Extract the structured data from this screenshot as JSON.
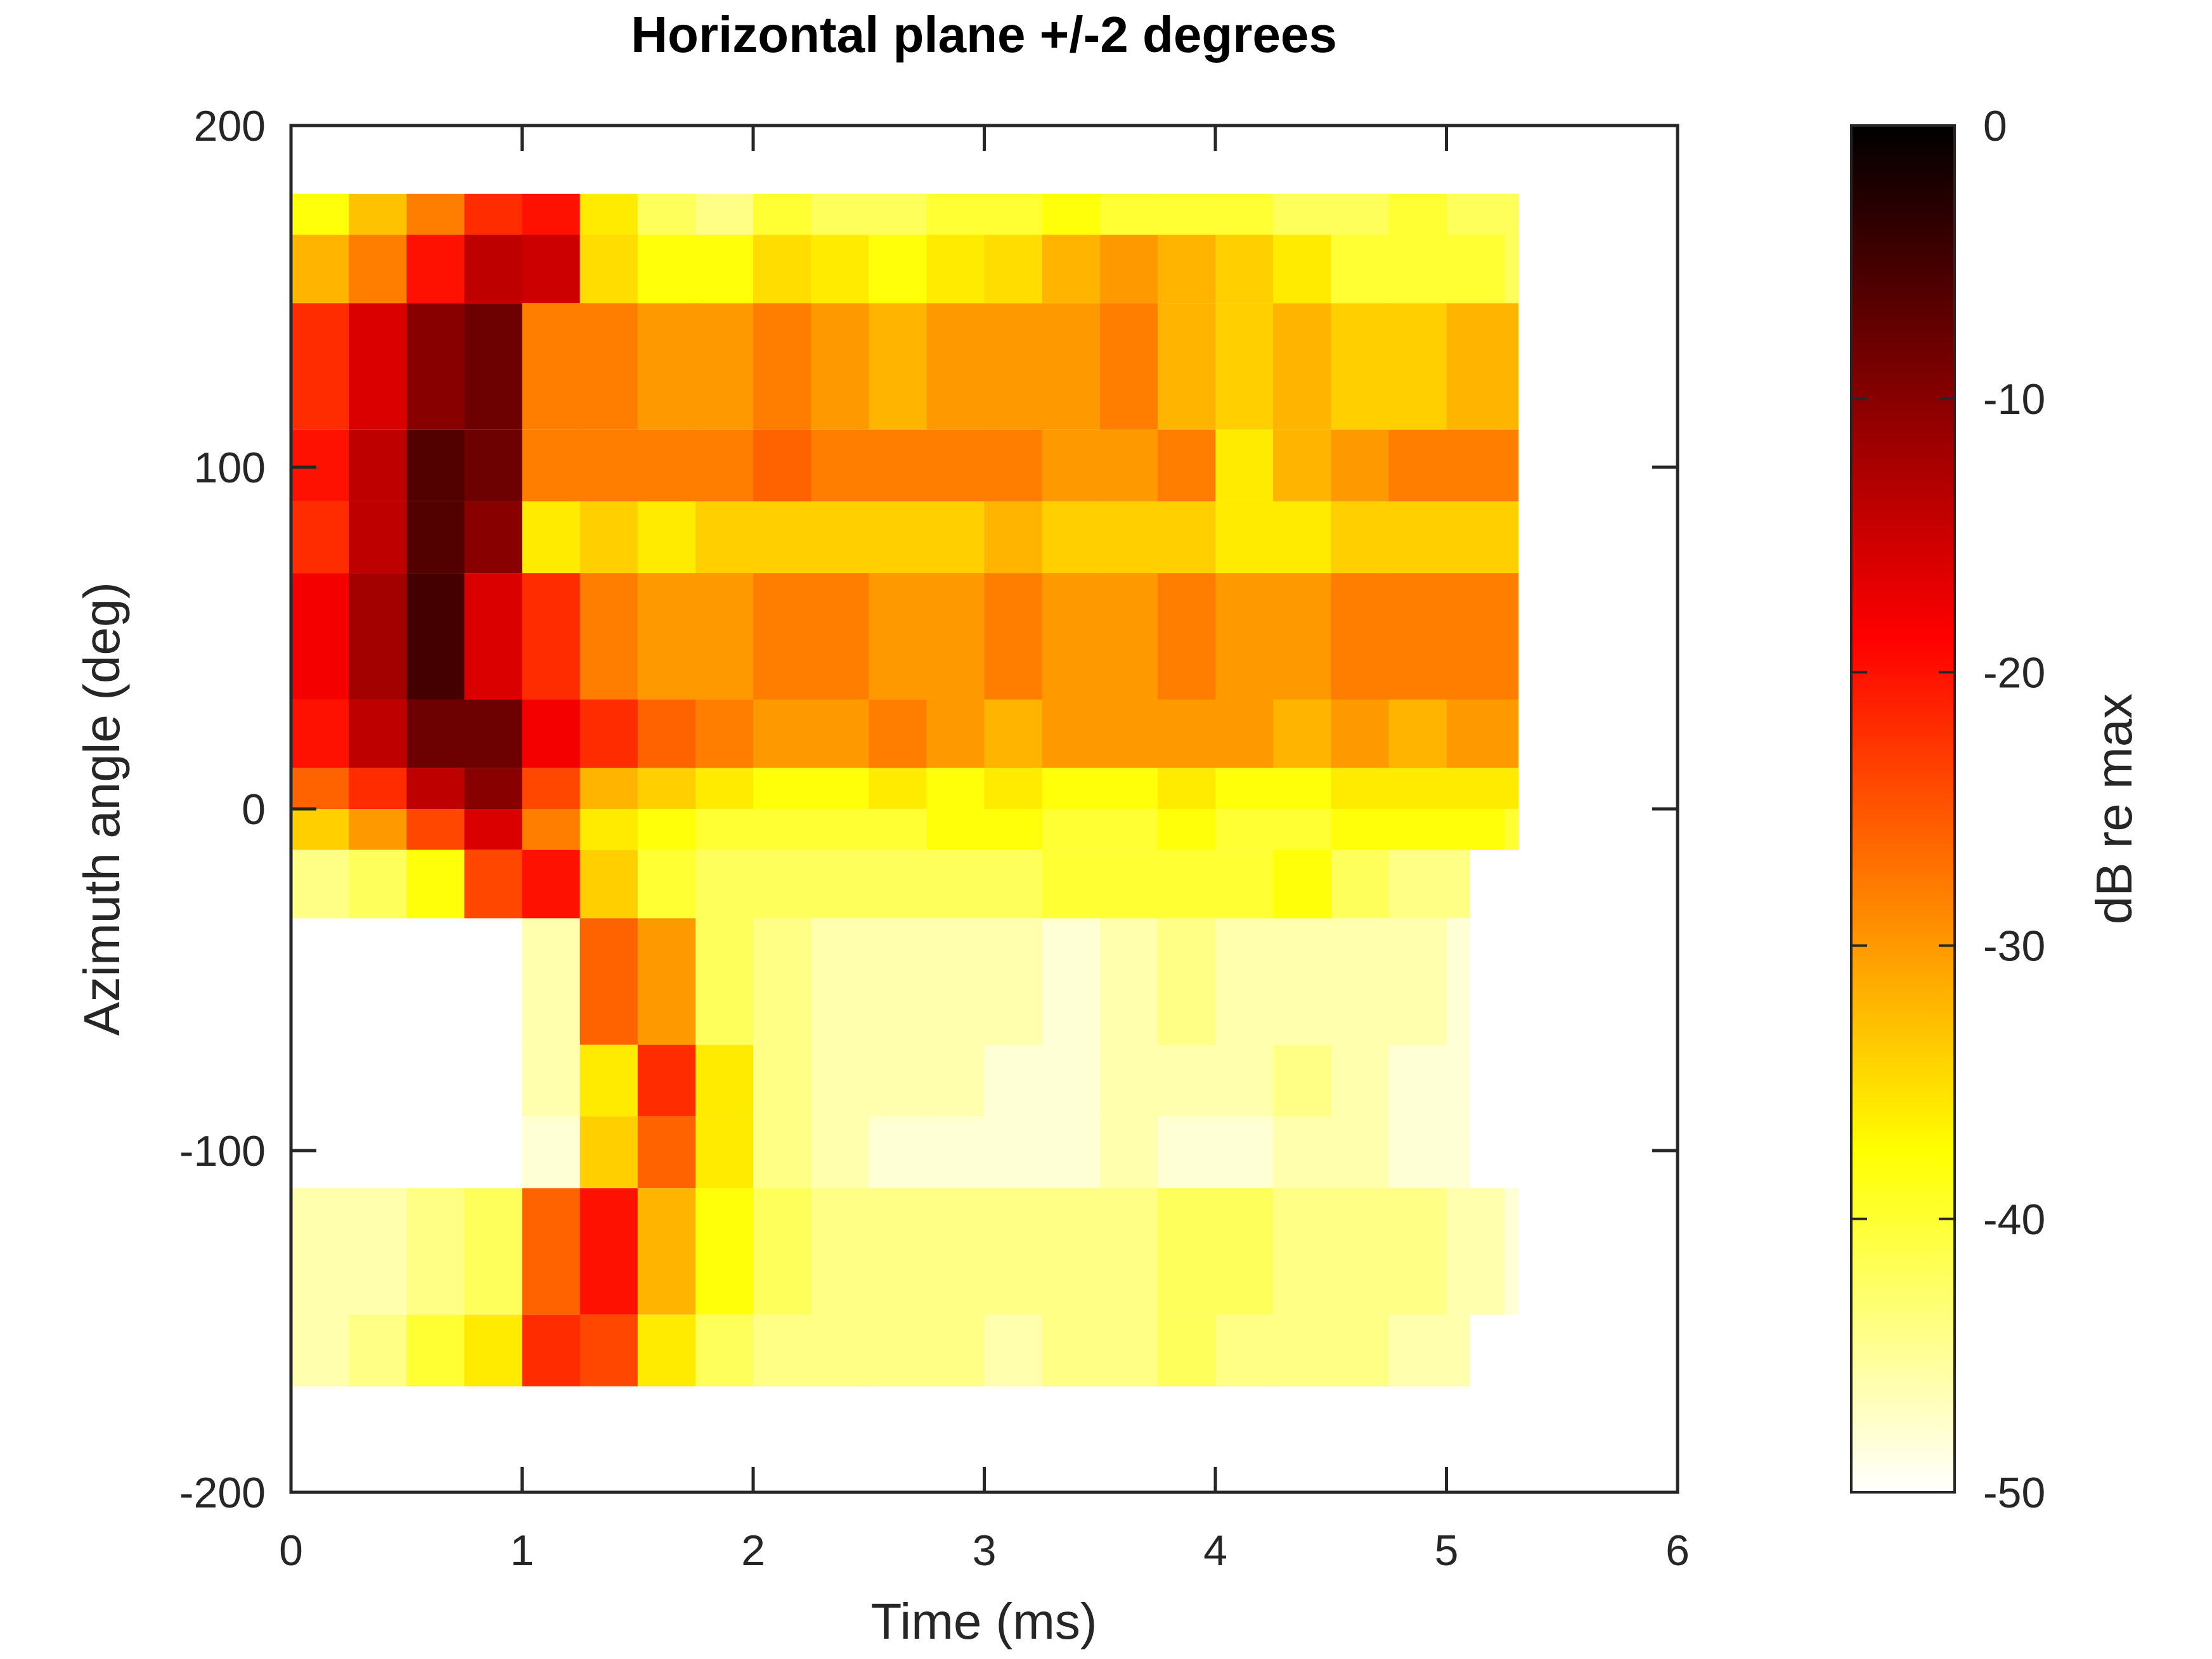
{
  "chart_data": {
    "type": "heatmap",
    "title": "Horizontal plane +/-2 degrees",
    "xlabel": "Time (ms)",
    "ylabel": "Azimuth angle (deg)",
    "xlim": [
      0,
      6
    ],
    "ylim": [
      -200,
      200
    ],
    "xticks": [
      "0",
      "1",
      "2",
      "3",
      "4",
      "5",
      "6"
    ],
    "yticks": [
      "200",
      "100",
      "0",
      "-100",
      "-200"
    ],
    "colorbar": {
      "label": "dB re max",
      "range": [
        -50,
        0
      ],
      "ticks": [
        "0",
        "-10",
        "-20",
        "-30",
        "-40",
        "-50"
      ],
      "colormap": "hot (0 dB black, -50 dB white)"
    },
    "time_bin_ms": 0.25,
    "rows": [
      {
        "az": [
          168,
          180
        ],
        "t_end": 5.31,
        "values": [
          -38,
          -33,
          -28,
          -22,
          -20,
          -36,
          -42,
          -44,
          -40,
          -42,
          -42,
          -40,
          -40,
          -38,
          -40,
          -40,
          -40,
          -42,
          -42,
          -40,
          -42,
          -42
        ]
      },
      {
        "az": [
          148,
          168
        ],
        "t_end": 5.31,
        "values": [
          -32,
          -28,
          -20,
          -14,
          -15,
          -35,
          -38,
          -38,
          -35,
          -36,
          -38,
          -36,
          -35,
          -32,
          -30,
          -32,
          -34,
          -36,
          -40,
          -40,
          -40,
          -42
        ]
      },
      {
        "az": [
          111,
          148
        ],
        "t_end": 5.31,
        "values": [
          -22,
          -16,
          -10,
          -8,
          -28,
          -28,
          -30,
          -30,
          -28,
          -30,
          -32,
          -30,
          -30,
          -30,
          -28,
          -32,
          -34,
          -32,
          -34,
          -34,
          -32,
          -32
        ]
      },
      {
        "az": [
          90,
          111
        ],
        "t_end": 5.31,
        "values": [
          -20,
          -14,
          -6,
          -8,
          -28,
          -28,
          -28,
          -28,
          -26,
          -28,
          -28,
          -28,
          -28,
          -30,
          -30,
          -28,
          -36,
          -32,
          -30,
          -28,
          -28,
          -28
        ]
      },
      {
        "az": [
          69,
          90
        ],
        "t_end": 5.31,
        "values": [
          -22,
          -14,
          -6,
          -10,
          -36,
          -34,
          -36,
          -34,
          -34,
          -34,
          -34,
          -34,
          -32,
          -34,
          -34,
          -34,
          -36,
          -36,
          -34,
          -34,
          -34,
          -34
        ]
      },
      {
        "az": [
          32,
          69
        ],
        "t_end": 5.31,
        "values": [
          -18,
          -12,
          -5,
          -16,
          -22,
          -28,
          -30,
          -30,
          -28,
          -28,
          -30,
          -30,
          -28,
          -30,
          -30,
          -28,
          -30,
          -30,
          -28,
          -28,
          -28,
          -28
        ]
      },
      {
        "az": [
          12,
          32
        ],
        "t_end": 5.31,
        "values": [
          -20,
          -14,
          -8,
          -8,
          -18,
          -22,
          -26,
          -28,
          -30,
          -30,
          -28,
          -30,
          -32,
          -30,
          -30,
          -30,
          -30,
          -32,
          -30,
          -32,
          -30,
          -30
        ]
      },
      {
        "az": [
          0,
          12
        ],
        "t_end": 5.31,
        "values": [
          -26,
          -22,
          -14,
          -10,
          -24,
          -32,
          -34,
          -36,
          -38,
          -38,
          -36,
          -38,
          -36,
          -38,
          -38,
          -36,
          -38,
          -38,
          -36,
          -36,
          -36,
          -36
        ]
      },
      {
        "az": [
          -12,
          0
        ],
        "t_end": 5.31,
        "values": [
          -34,
          -30,
          -24,
          -16,
          -28,
          -36,
          -38,
          -40,
          -40,
          -40,
          -40,
          -38,
          -38,
          -40,
          -40,
          -38,
          -40,
          -40,
          -38,
          -38,
          -38,
          -40
        ]
      },
      {
        "az": [
          -32,
          -12
        ],
        "t_end": 5.1,
        "values": [
          -44,
          -42,
          -38,
          -24,
          -20,
          -34,
          -40,
          -42,
          -42,
          -42,
          -42,
          -42,
          -42,
          -40,
          -40,
          -40,
          -40,
          -38,
          -42,
          -44,
          -44
        ]
      },
      {
        "az": [
          -69,
          -32
        ],
        "t_end": 5.1,
        "values": [
          -50,
          -50,
          -50,
          -50,
          -46,
          -26,
          -30,
          -42,
          -44,
          -46,
          -46,
          -46,
          -46,
          -48,
          -46,
          -44,
          -46,
          -46,
          -46,
          -46,
          -48
        ]
      },
      {
        "az": [
          -90,
          -69
        ],
        "t_end": 5.1,
        "values": [
          -50,
          -50,
          -50,
          -50,
          -46,
          -36,
          -22,
          -36,
          -44,
          -46,
          -46,
          -46,
          -48,
          -48,
          -46,
          -46,
          -46,
          -44,
          -46,
          -48,
          -48
        ]
      },
      {
        "az": [
          -111,
          -90
        ],
        "t_end": 5.1,
        "values": [
          -50,
          -50,
          -50,
          -50,
          -48,
          -34,
          -26,
          -36,
          -44,
          -46,
          -48,
          -48,
          -48,
          -48,
          -46,
          -48,
          -48,
          -46,
          -46,
          -48,
          -48
        ]
      },
      {
        "az": [
          -148,
          -111
        ],
        "t_end": 5.31,
        "values": [
          -46,
          -46,
          -44,
          -42,
          -26,
          -20,
          -32,
          -38,
          -42,
          -44,
          -44,
          -44,
          -44,
          -44,
          -44,
          -42,
          -42,
          -44,
          -44,
          -44,
          -46,
          -48
        ]
      },
      {
        "az": [
          -169,
          -148
        ],
        "t_end": 5.1,
        "values": [
          -46,
          -44,
          -40,
          -36,
          -22,
          -24,
          -36,
          -42,
          -44,
          -44,
          -44,
          -44,
          -46,
          -44,
          -44,
          -42,
          -44,
          -44,
          -44,
          -46,
          -46
        ]
      }
    ]
  }
}
